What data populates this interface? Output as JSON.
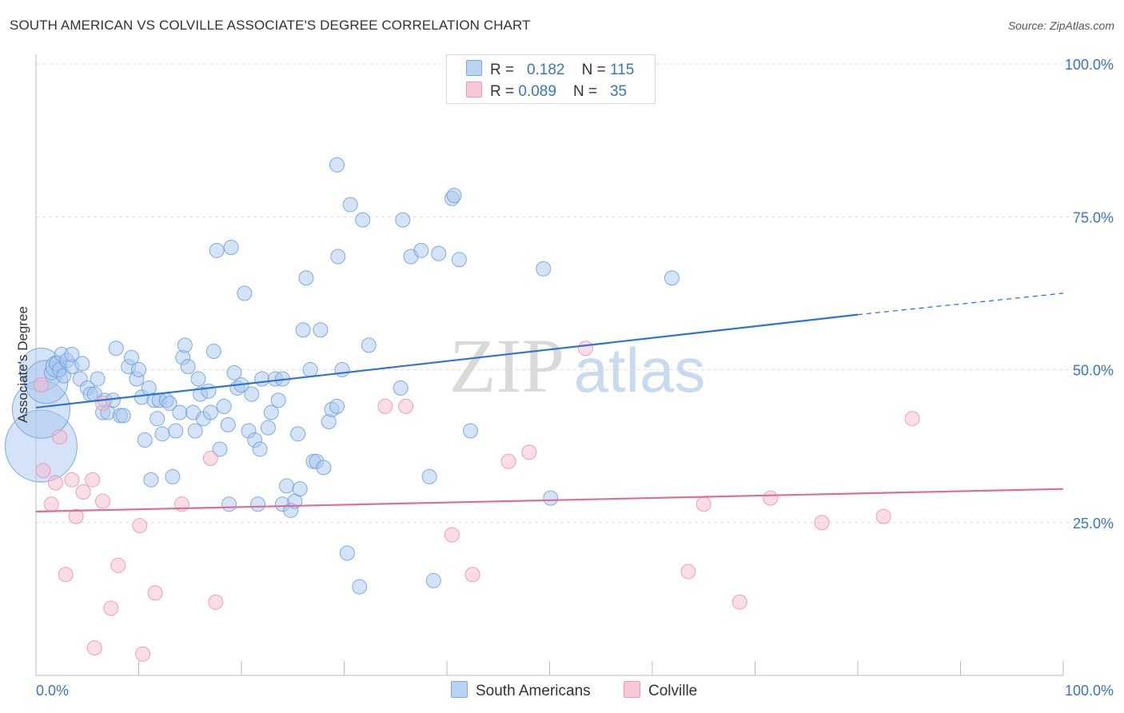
{
  "header": {
    "title": "SOUTH AMERICAN VS COLVILLE ASSOCIATE'S DEGREE CORRELATION CHART",
    "source": "Source: ZipAtlas.com"
  },
  "legend_top": {
    "rows": [
      {
        "r_label": "R = ",
        "r_value": "0.182",
        "n_label": "N = ",
        "n_value": "115"
      },
      {
        "r_label": "R = ",
        "r_value": "0.089",
        "n_label": "N = ",
        "n_value": "35"
      }
    ]
  },
  "legend_bottom": [
    "South Americans",
    "Colville"
  ],
  "watermark": {
    "zip": "ZIP",
    "atlas": "atlas"
  },
  "colors": {
    "blue_fill": "#a9c8ef",
    "blue_stroke": "#6a9fdc",
    "blue_line": "#2f72d6",
    "pink_fill": "#f6bccd",
    "pink_stroke": "#ec8fae",
    "pink_line": "#e06c98",
    "axis_text": "#3a73c4",
    "grid": "#dcdcdc"
  },
  "chart_data": {
    "type": "scatter",
    "title": "SOUTH AMERICAN VS COLVILLE ASSOCIATE'S DEGREE CORRELATION CHART",
    "xlabel": "",
    "ylabel": "Associate's Degree",
    "xlim": [
      0,
      100
    ],
    "ylim": [
      0,
      100
    ],
    "x_tick_labels": [
      "0.0%",
      "100.0%"
    ],
    "y_tick_labels": [
      "25.0%",
      "50.0%",
      "75.0%",
      "100.0%"
    ],
    "y_ticks": [
      25,
      50,
      75,
      100
    ],
    "grid": true,
    "legend": "top-center",
    "series": [
      {
        "name": "South Americans",
        "r": 0.182,
        "n": 115,
        "trend": {
          "x": [
            0,
            80
          ],
          "y": [
            43.8,
            59.0
          ],
          "dashed_to": [
            100,
            62.5
          ]
        },
        "points": [
          [
            0.5,
            50,
            3
          ],
          [
            0.5,
            37.5,
            5
          ],
          [
            0.5,
            43.5,
            4
          ],
          [
            1,
            48,
            3
          ],
          [
            1.5,
            49.5,
            1
          ],
          [
            2,
            50.5,
            1.5
          ],
          [
            2,
            51,
            1
          ],
          [
            2.3,
            50,
            1
          ],
          [
            2.5,
            52.5,
            1
          ],
          [
            2.7,
            49,
            1
          ],
          [
            3,
            51.5,
            1
          ],
          [
            3.5,
            50.5,
            1
          ],
          [
            3.5,
            52.5,
            1
          ],
          [
            4.3,
            48.5,
            1
          ],
          [
            4.5,
            51,
            1
          ],
          [
            5,
            47,
            1
          ],
          [
            5.3,
            46,
            1
          ],
          [
            5.7,
            46,
            1
          ],
          [
            6,
            48.5,
            1
          ],
          [
            6.5,
            43,
            1
          ],
          [
            6.7,
            45,
            1
          ],
          [
            7,
            43,
            1
          ],
          [
            7.5,
            45,
            1
          ],
          [
            7.8,
            53.5,
            1
          ],
          [
            8.2,
            42.5,
            1
          ],
          [
            8.5,
            42.5,
            1
          ],
          [
            9,
            50.5,
            1
          ],
          [
            9.3,
            52,
            1
          ],
          [
            9.8,
            48.5,
            1
          ],
          [
            10,
            50,
            1
          ],
          [
            10.3,
            45.5,
            1
          ],
          [
            10.6,
            38.5,
            1
          ],
          [
            11,
            47,
            1
          ],
          [
            11.2,
            32,
            1
          ],
          [
            11.5,
            45,
            1
          ],
          [
            11.8,
            42,
            1
          ],
          [
            12,
            45,
            1
          ],
          [
            12.3,
            39.5,
            1
          ],
          [
            12.7,
            45,
            1
          ],
          [
            13,
            44.5,
            1
          ],
          [
            13.3,
            32.5,
            1
          ],
          [
            13.6,
            40,
            1
          ],
          [
            14,
            43,
            1
          ],
          [
            14.3,
            52,
            1
          ],
          [
            14.5,
            54,
            1
          ],
          [
            14.8,
            50.5,
            1
          ],
          [
            15.3,
            43,
            1
          ],
          [
            15.5,
            40,
            1
          ],
          [
            15.8,
            48.5,
            1
          ],
          [
            16,
            46,
            1
          ],
          [
            16.3,
            42,
            1
          ],
          [
            16.8,
            46.5,
            1
          ],
          [
            17,
            43,
            1
          ],
          [
            17.3,
            53,
            1
          ],
          [
            17.6,
            69.5,
            1
          ],
          [
            17.9,
            37,
            1
          ],
          [
            18.3,
            44,
            1
          ],
          [
            18.7,
            41,
            1
          ],
          [
            18.8,
            28,
            1
          ],
          [
            19,
            70,
            1
          ],
          [
            19.3,
            49.5,
            1
          ],
          [
            19.6,
            47,
            1
          ],
          [
            20,
            47.5,
            1
          ],
          [
            20.3,
            62.5,
            1
          ],
          [
            20.7,
            40,
            1
          ],
          [
            21,
            46,
            1
          ],
          [
            21.3,
            38.5,
            1
          ],
          [
            21.6,
            28,
            1
          ],
          [
            21.8,
            37,
            1
          ],
          [
            22,
            48.5,
            1
          ],
          [
            22.6,
            40.5,
            1
          ],
          [
            22.9,
            43,
            1
          ],
          [
            23.3,
            48.5,
            1
          ],
          [
            23.6,
            45,
            1
          ],
          [
            24,
            28,
            1
          ],
          [
            24,
            48.5,
            1
          ],
          [
            24.4,
            31,
            1
          ],
          [
            24.8,
            27,
            1
          ],
          [
            25.2,
            28.5,
            1
          ],
          [
            25.5,
            39.5,
            1
          ],
          [
            25.7,
            30.5,
            1
          ],
          [
            26,
            56.5,
            1
          ],
          [
            26.3,
            65,
            1
          ],
          [
            26.7,
            50,
            1
          ],
          [
            27,
            35,
            1
          ],
          [
            27.3,
            35,
            1
          ],
          [
            27.7,
            56.5,
            1
          ],
          [
            28,
            34,
            1
          ],
          [
            28.5,
            41.5,
            1
          ],
          [
            28.8,
            43.5,
            1
          ],
          [
            29.3,
            44,
            1
          ],
          [
            29.4,
            68.5,
            1
          ],
          [
            29.8,
            50,
            1
          ],
          [
            29.3,
            83.5,
            1
          ],
          [
            30.3,
            20,
            1
          ],
          [
            30.6,
            77,
            1
          ],
          [
            31.5,
            14.5,
            1
          ],
          [
            31.8,
            74.5,
            1
          ],
          [
            32.4,
            54,
            1
          ],
          [
            35.5,
            47,
            1
          ],
          [
            35.7,
            74.5,
            1
          ],
          [
            36.5,
            68.5,
            1
          ],
          [
            37.5,
            69.5,
            1
          ],
          [
            38.3,
            32.5,
            1
          ],
          [
            38.7,
            15.5,
            1
          ],
          [
            39.2,
            69,
            1
          ],
          [
            40.5,
            78,
            1
          ],
          [
            40.7,
            78.5,
            1
          ],
          [
            41.2,
            68,
            1
          ],
          [
            42.3,
            40,
            1
          ],
          [
            49.4,
            66.5,
            1
          ],
          [
            50.1,
            29,
            1
          ],
          [
            61.9,
            65,
            1
          ]
        ]
      },
      {
        "name": "Colville",
        "r": 0.089,
        "n": 35,
        "trend": {
          "x": [
            0,
            100
          ],
          "y": [
            26.8,
            30.5
          ]
        },
        "points": [
          [
            0.5,
            47.5,
            1
          ],
          [
            0.7,
            33.5,
            1
          ],
          [
            1.5,
            28,
            1
          ],
          [
            1.9,
            31.5,
            1
          ],
          [
            2.3,
            39,
            1
          ],
          [
            2.9,
            16.5,
            1
          ],
          [
            3.5,
            32,
            1
          ],
          [
            3.9,
            26,
            1
          ],
          [
            4.6,
            30,
            1
          ],
          [
            5.5,
            32,
            1
          ],
          [
            5.7,
            4.5,
            1
          ],
          [
            6.5,
            28.5,
            1
          ],
          [
            6.5,
            44.5,
            1
          ],
          [
            7.3,
            11,
            1
          ],
          [
            8,
            18,
            1
          ],
          [
            10.1,
            24.5,
            1
          ],
          [
            10.4,
            3.5,
            1
          ],
          [
            11.6,
            13.5,
            1
          ],
          [
            14.2,
            28,
            1
          ],
          [
            17,
            35.5,
            1
          ],
          [
            17.5,
            12,
            1
          ],
          [
            34,
            44,
            1
          ],
          [
            36,
            44,
            1
          ],
          [
            40.5,
            23,
            1
          ],
          [
            42.5,
            16.5,
            1
          ],
          [
            46,
            35,
            1
          ],
          [
            48,
            36.5,
            1
          ],
          [
            53.5,
            53.5,
            1
          ],
          [
            63.5,
            17,
            1
          ],
          [
            65,
            28,
            1
          ],
          [
            68.5,
            12,
            1
          ],
          [
            71.5,
            29,
            1
          ],
          [
            76.5,
            25,
            1
          ],
          [
            82.5,
            26,
            1
          ],
          [
            85.3,
            42,
            1
          ]
        ]
      }
    ]
  }
}
